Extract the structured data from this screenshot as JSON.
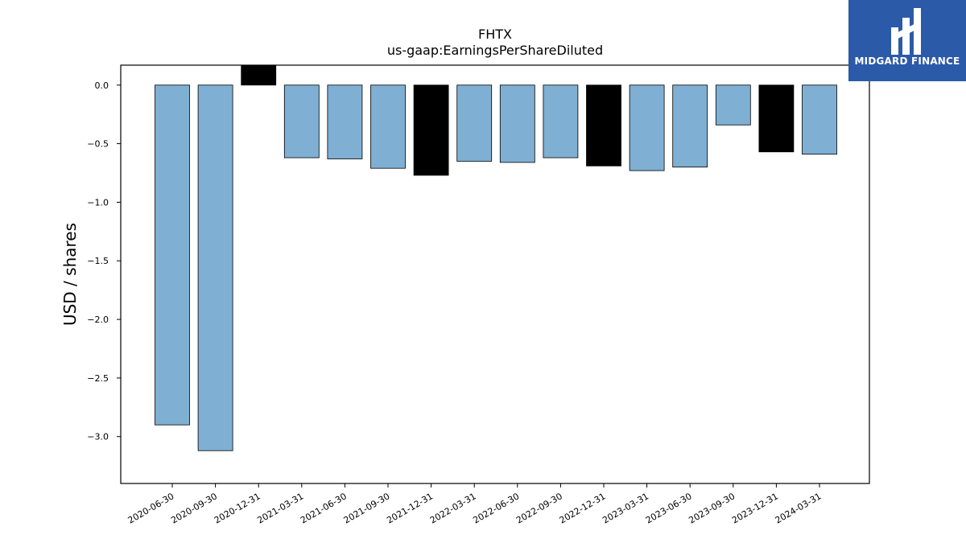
{
  "chart_data": {
    "type": "bar",
    "title": "FHTX",
    "subtitle": "us-gaap:EarningsPerShareDiluted",
    "ylabel": "USD / shares",
    "xlabel": "",
    "ylim": [
      -3.4,
      0.17
    ],
    "yticks": [
      0.0,
      -0.5,
      -1.0,
      -1.5,
      -2.0,
      -2.5,
      -3.0
    ],
    "ytick_labels": [
      "0.0",
      "−0.5",
      "−1.0",
      "−1.5",
      "−2.0",
      "−2.5",
      "−3.0"
    ],
    "grid": false,
    "categories": [
      "2020-06-30",
      "2020-09-30",
      "2020-12-31",
      "2021-03-31",
      "2021-06-30",
      "2021-09-30",
      "2021-12-31",
      "2022-03-31",
      "2022-06-30",
      "2022-09-30",
      "2022-12-31",
      "2023-03-31",
      "2023-06-30",
      "2023-09-30",
      "2023-12-31",
      "2024-03-31"
    ],
    "values": [
      -2.9,
      -3.12,
      0.17,
      -0.62,
      -0.63,
      -0.71,
      -0.77,
      -0.65,
      -0.66,
      -0.62,
      -0.69,
      -0.73,
      -0.7,
      -0.34,
      -0.57,
      -0.59
    ],
    "bar_colors": [
      "#7fafd3",
      "#7fafd3",
      "#000000",
      "#7fafd3",
      "#7fafd3",
      "#7fafd3",
      "#000000",
      "#7fafd3",
      "#7fafd3",
      "#7fafd3",
      "#000000",
      "#7fafd3",
      "#7fafd3",
      "#7fafd3",
      "#000000",
      "#7fafd3"
    ]
  },
  "logo": {
    "text": "MIDGARD FINANCE",
    "background": "#2b5aa8"
  }
}
